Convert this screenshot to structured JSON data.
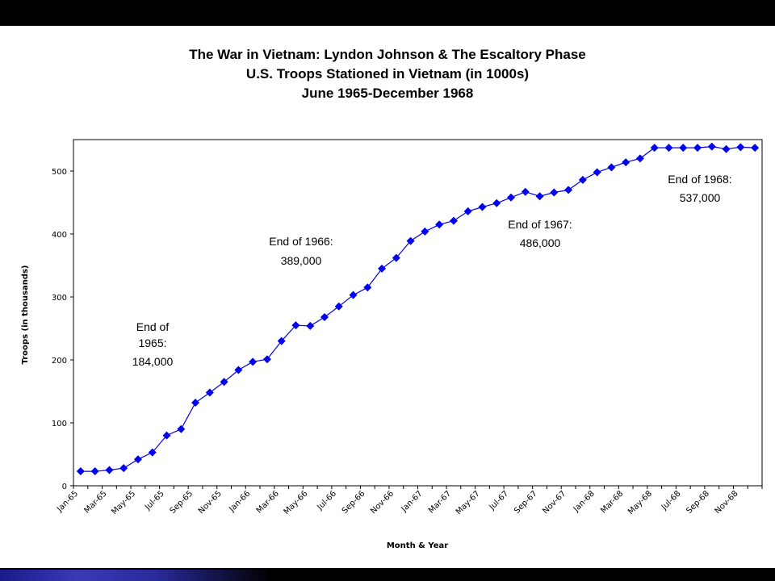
{
  "chart_data": {
    "type": "line",
    "title": "The War in Vietnam: Lyndon Johnson & The Escaltory Phase",
    "subtitle_lines": [
      "U.S. Troops Stationed in Vietnam (in 1000s)",
      "June 1965-December 1968"
    ],
    "xlabel": "Month & Year",
    "ylabel": "Troops (in thousands)",
    "ylim": [
      0,
      550
    ],
    "yticks": [
      0,
      100,
      200,
      300,
      400,
      500
    ],
    "x_tick_labels": [
      "Jan-65",
      "Mar-65",
      "May-65",
      "Jul-65",
      "Sep-65",
      "Nov-65",
      "Jan-66",
      "Mar-66",
      "May-66",
      "Jul-66",
      "Sep-66",
      "Nov-66",
      "Jan-67",
      "Mar-67",
      "May-67",
      "Jul-67",
      "Sep-67",
      "Nov-67",
      "Jan-68",
      "Mar-68",
      "May-68",
      "Jul-68",
      "Sep-68",
      "Nov-68"
    ],
    "grid": false,
    "series": [
      {
        "color": "#0000ee",
        "marker": "diamond",
        "values": [
          23,
          23,
          25,
          28,
          42,
          53,
          80,
          90,
          132,
          148,
          165,
          184,
          197,
          201,
          230,
          255,
          254,
          268,
          285,
          303,
          315,
          345,
          362,
          389,
          404,
          415,
          421,
          436,
          443,
          449,
          458,
          467,
          460,
          466,
          470,
          486,
          498,
          506,
          514,
          520,
          537,
          537,
          537,
          537,
          539,
          535,
          538,
          537
        ]
      }
    ],
    "annotations": [
      {
        "lines": [
          "End of",
          "1965:",
          "184,000"
        ]
      },
      {
        "lines": [
          "End of 1966:",
          "389,000"
        ]
      },
      {
        "lines": [
          "End of 1967:",
          "486,000"
        ]
      },
      {
        "lines": [
          "End of 1968:",
          "537,000"
        ]
      }
    ]
  }
}
